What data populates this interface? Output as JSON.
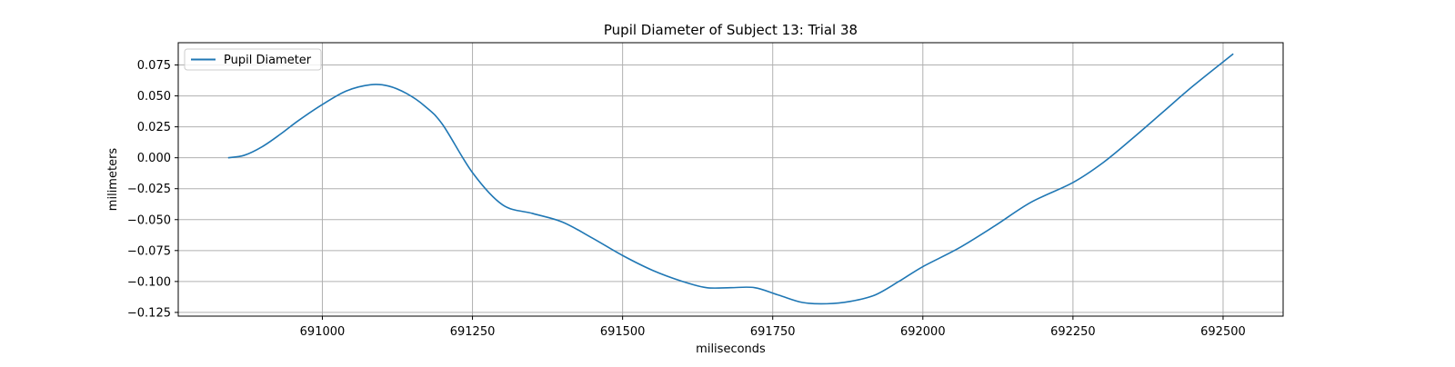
{
  "chart_data": {
    "type": "line",
    "title": "Pupil Diameter of Subject 13: Trial 38",
    "xlabel": "miliseconds",
    "ylabel": "milimeters",
    "xlim": [
      690760,
      692600
    ],
    "ylim": [
      -0.128,
      0.093
    ],
    "xticks": [
      691000,
      691250,
      691500,
      691750,
      692000,
      692250,
      692500
    ],
    "xtick_labels": [
      "691000",
      "691250",
      "691500",
      "691750",
      "692000",
      "692250",
      "692500"
    ],
    "yticks": [
      0.075,
      0.05,
      0.025,
      0.0,
      -0.025,
      -0.05,
      -0.075,
      -0.1,
      -0.125
    ],
    "ytick_labels": [
      "0.075",
      "0.050",
      "0.025",
      "0.000",
      "−0.025",
      "−0.050",
      "−0.075",
      "−0.100",
      "−0.125"
    ],
    "grid": true,
    "legend_position": "upper-left",
    "series": [
      {
        "name": "Pupil Diameter",
        "color": "#1f77b4",
        "x": [
          690843,
          690870,
          690900,
          690930,
          690960,
          691000,
          691040,
          691080,
          691110,
          691140,
          691170,
          691200,
          691250,
          691300,
          691350,
          691400,
          691450,
          691500,
          691550,
          691600,
          691640,
          691680,
          691720,
          691760,
          691800,
          691840,
          691880,
          691920,
          691960,
          692000,
          692060,
          692120,
          692180,
          692250,
          692300,
          692350,
          692400,
          692450,
          692517
        ],
        "y": [
          0.0,
          0.002,
          0.009,
          0.019,
          0.03,
          0.043,
          0.054,
          0.059,
          0.058,
          0.052,
          0.042,
          0.027,
          -0.012,
          -0.038,
          -0.045,
          -0.052,
          -0.065,
          -0.079,
          -0.091,
          -0.1,
          -0.105,
          -0.105,
          -0.105,
          -0.111,
          -0.117,
          -0.118,
          -0.116,
          -0.111,
          -0.1,
          -0.088,
          -0.073,
          -0.055,
          -0.036,
          -0.02,
          -0.004,
          0.016,
          0.037,
          0.058,
          0.084
        ]
      }
    ]
  }
}
